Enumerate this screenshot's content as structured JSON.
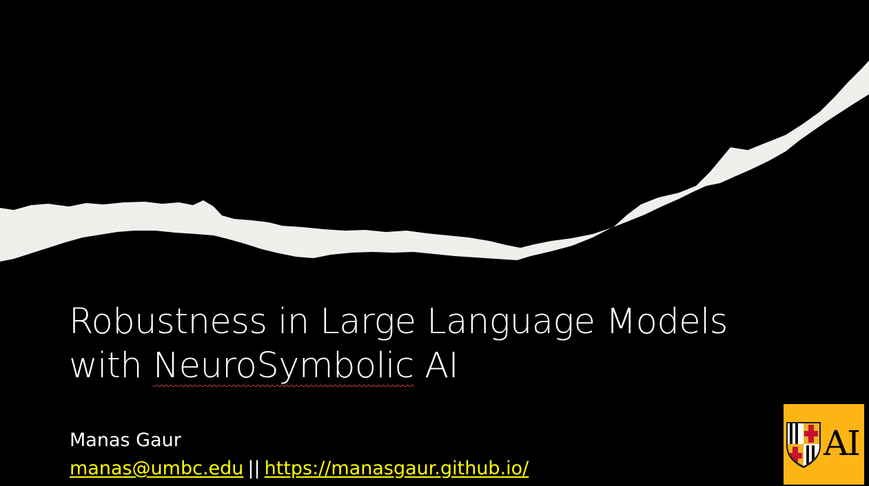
{
  "slide": {
    "background_color": "#000000",
    "paper_color": "#f2f1ee",
    "title_lines": [
      "Robustness in Large Language Models",
      "with ",
      "NeuroSymbolic",
      " AI"
    ],
    "author": "Manas Gaur",
    "email": "manas@umbc.edu",
    "separator": "||",
    "website": "https://manasgaur.github.io/",
    "link_color": "#ffff00",
    "logo": {
      "text": "AI",
      "background_color": "#fdb515",
      "icon": "maryland-shield-icon"
    }
  }
}
